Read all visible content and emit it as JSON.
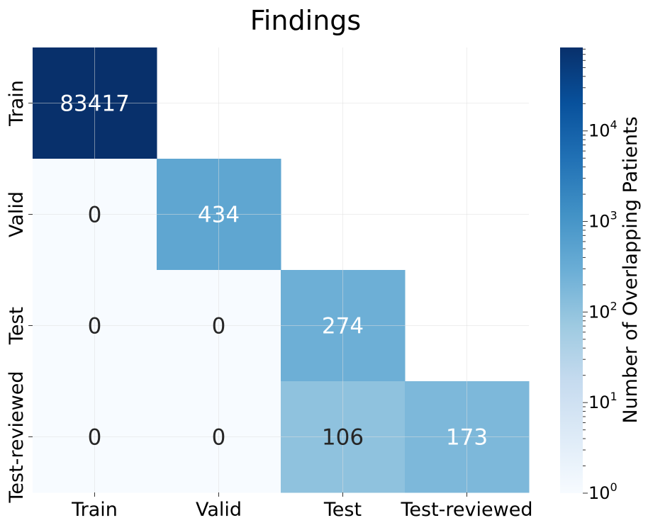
{
  "chart_data": {
    "type": "heatmap",
    "title": "Findings",
    "x_categories": [
      "Train",
      "Valid",
      "Test",
      "Test-reviewed"
    ],
    "y_categories": [
      "Train",
      "Valid",
      "Test",
      "Test-reviewed"
    ],
    "values": [
      [
        83417,
        null,
        null,
        null
      ],
      [
        0,
        434,
        null,
        null
      ],
      [
        0,
        0,
        274,
        null
      ],
      [
        0,
        0,
        106,
        173
      ]
    ],
    "cell_labels": [
      [
        "83417",
        "",
        "",
        ""
      ],
      [
        "0",
        "434",
        "",
        ""
      ],
      [
        "0",
        "0",
        "274",
        ""
      ],
      [
        "0",
        "0",
        "106",
        "173"
      ]
    ],
    "colorscale": "Blues",
    "color_low": "#f7fbff",
    "color_high": "#08306b",
    "colorbar": {
      "label": "Number of Overlapping Patients",
      "scale": "log",
      "range": [
        1,
        83417
      ],
      "ticks": [
        {
          "value": 1,
          "base": "10",
          "exp": "0"
        },
        {
          "value": 10,
          "base": "10",
          "exp": "1"
        },
        {
          "value": 100,
          "base": "10",
          "exp": "2"
        },
        {
          "value": 1000,
          "base": "10",
          "exp": "3"
        },
        {
          "value": 10000,
          "base": "10",
          "exp": "4"
        }
      ]
    },
    "grid": true
  }
}
